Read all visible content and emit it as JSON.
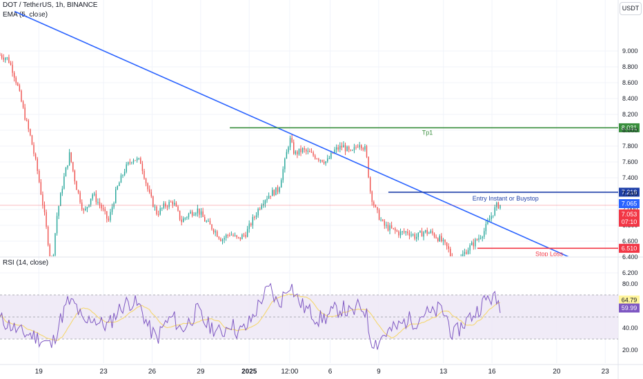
{
  "header": {
    "title": "DOT / TetherUS, 1h, BINANCE",
    "indicator": "EMA (5, close)",
    "currency": "USDT"
  },
  "chart_data": [
    {
      "type": "candlestick",
      "symbol": "DOT / TetherUS",
      "interval": "1h",
      "exchange": "BINANCE",
      "y_ticks": [
        "9.000",
        "8.800",
        "8.600",
        "8.400",
        "8.200",
        "8.000",
        "7.800",
        "7.600",
        "7.400",
        "7.200",
        "7.000",
        "6.800",
        "6.600",
        "6.400",
        "6.200"
      ],
      "ylim": [
        6.18,
        9.2
      ],
      "x_ticks": [
        {
          "day": 0.7,
          "label": "19",
          "bold": false
        },
        {
          "day": 4.7,
          "label": "23",
          "bold": false
        },
        {
          "day": 7.7,
          "label": "26",
          "bold": false
        },
        {
          "day": 10.7,
          "label": "29",
          "bold": false
        },
        {
          "day": 13.7,
          "label": "2025",
          "bold": true
        },
        {
          "day": 16.2,
          "label": "12:00",
          "bold": false
        },
        {
          "day": 18.7,
          "label": "6",
          "bold": false
        },
        {
          "day": 21.7,
          "label": "9",
          "bold": false
        },
        {
          "day": 25.7,
          "label": "13",
          "bold": false
        },
        {
          "day": 28.7,
          "label": "16",
          "bold": false
        },
        {
          "day": 32.7,
          "label": "20",
          "bold": false
        },
        {
          "day": 35.7,
          "label": "23",
          "bold": false
        }
      ],
      "xlim": [
        -1.7,
        36.5
      ],
      "price_path": [
        [
          -1.7,
          8.95
        ],
        [
          -1.2,
          8.9
        ],
        [
          -0.9,
          8.75
        ],
        [
          -0.6,
          8.55
        ],
        [
          -0.2,
          8.2
        ],
        [
          0.2,
          7.9
        ],
        [
          0.6,
          7.5
        ],
        [
          1.0,
          7.0
        ],
        [
          1.3,
          6.55
        ],
        [
          1.5,
          6.25
        ],
        [
          1.8,
          6.9
        ],
        [
          2.2,
          7.35
        ],
        [
          2.6,
          7.7
        ],
        [
          3.0,
          7.3
        ],
        [
          3.5,
          6.95
        ],
        [
          4.0,
          7.2
        ],
        [
          4.5,
          7.05
        ],
        [
          5.0,
          6.85
        ],
        [
          5.5,
          7.25
        ],
        [
          6.0,
          7.5
        ],
        [
          6.5,
          7.65
        ],
        [
          7.0,
          7.6
        ],
        [
          7.5,
          7.2
        ],
        [
          8.0,
          6.95
        ],
        [
          8.5,
          7.05
        ],
        [
          9.0,
          7.1
        ],
        [
          9.5,
          6.85
        ],
        [
          10.0,
          6.95
        ],
        [
          10.5,
          7.0
        ],
        [
          11.0,
          6.85
        ],
        [
          11.5,
          6.75
        ],
        [
          12.0,
          6.62
        ],
        [
          12.5,
          6.7
        ],
        [
          13.0,
          6.62
        ],
        [
          13.5,
          6.7
        ],
        [
          14.0,
          6.9
        ],
        [
          14.5,
          7.1
        ],
        [
          15.0,
          7.2
        ],
        [
          15.5,
          7.25
        ],
        [
          15.9,
          7.6
        ],
        [
          16.2,
          7.9
        ],
        [
          16.5,
          7.7
        ],
        [
          17.0,
          7.75
        ],
        [
          17.5,
          7.7
        ],
        [
          18.0,
          7.65
        ],
        [
          18.5,
          7.6
        ],
        [
          19.0,
          7.75
        ],
        [
          19.5,
          7.8
        ],
        [
          20.0,
          7.7
        ],
        [
          20.5,
          7.85
        ],
        [
          20.9,
          7.75
        ],
        [
          21.2,
          7.2
        ],
        [
          21.5,
          7.0
        ],
        [
          22.0,
          6.8
        ],
        [
          22.5,
          6.75
        ],
        [
          23.0,
          6.7
        ],
        [
          23.5,
          6.72
        ],
        [
          24.0,
          6.65
        ],
        [
          24.5,
          6.72
        ],
        [
          25.0,
          6.7
        ],
        [
          25.5,
          6.62
        ],
        [
          26.0,
          6.5
        ],
        [
          26.4,
          6.25
        ],
        [
          26.8,
          6.4
        ],
        [
          27.2,
          6.5
        ],
        [
          27.7,
          6.6
        ],
        [
          28.2,
          6.72
        ],
        [
          28.6,
          6.9
        ],
        [
          29.0,
          7.05
        ],
        [
          29.3,
          7.06
        ]
      ],
      "trendline": {
        "from": [
          -0.8,
          9.5
        ],
        "to": [
          35.9,
          6.18
        ],
        "color": "#2962ff"
      },
      "levels": [
        {
          "name": "Tp1",
          "price": 8.031,
          "tag": "8.031",
          "color": "#388e3c",
          "from_day": 12.5
        },
        {
          "name": "Entry Instant or Buystop",
          "price": 7.218,
          "tag": "7.218",
          "color": "#1e3fa8",
          "from_day": 22.3
        },
        {
          "name": "Stop Loss",
          "price": 6.51,
          "tag": "6.510",
          "color": "#f23645",
          "from_day": 27.8
        }
      ],
      "current_price": {
        "price": 7.053,
        "label": "7.053",
        "countdown": "07:10",
        "color": "#f23645"
      },
      "ema_value": {
        "price": 7.065,
        "label": "7.065",
        "color": "#2962ff"
      }
    },
    {
      "type": "line",
      "name": "RSI (14, close)",
      "y_ticks": [
        "80.00",
        "40.00",
        "20.00"
      ],
      "ylim": [
        17,
        86
      ],
      "band": {
        "upper": 70,
        "middle": 50,
        "lower": 30
      },
      "values_path": [
        [
          -1.7,
          48
        ],
        [
          -1.0,
          42
        ],
        [
          -0.5,
          36
        ],
        [
          0.2,
          34
        ],
        [
          0.8,
          30
        ],
        [
          1.5,
          24
        ],
        [
          2.0,
          46
        ],
        [
          2.5,
          64
        ],
        [
          3.0,
          60
        ],
        [
          3.5,
          42
        ],
        [
          4.0,
          50
        ],
        [
          4.5,
          44
        ],
        [
          5.0,
          42
        ],
        [
          5.5,
          54
        ],
        [
          6.0,
          62
        ],
        [
          6.5,
          64
        ],
        [
          7.0,
          58
        ],
        [
          7.5,
          40
        ],
        [
          8.0,
          30
        ],
        [
          8.5,
          44
        ],
        [
          9.0,
          50
        ],
        [
          9.5,
          38
        ],
        [
          10.0,
          46
        ],
        [
          10.5,
          56
        ],
        [
          11.0,
          44
        ],
        [
          11.5,
          40
        ],
        [
          12.0,
          34
        ],
        [
          12.5,
          46
        ],
        [
          13.0,
          36
        ],
        [
          13.5,
          40
        ],
        [
          14.0,
          52
        ],
        [
          14.5,
          68
        ],
        [
          15.0,
          76
        ],
        [
          15.5,
          60
        ],
        [
          15.9,
          72
        ],
        [
          16.2,
          82
        ],
        [
          16.6,
          68
        ],
        [
          17.0,
          60
        ],
        [
          17.5,
          54
        ],
        [
          18.0,
          48
        ],
        [
          18.5,
          50
        ],
        [
          19.0,
          56
        ],
        [
          19.5,
          58
        ],
        [
          20.0,
          52
        ],
        [
          20.5,
          60
        ],
        [
          20.9,
          56
        ],
        [
          21.2,
          30
        ],
        [
          21.6,
          26
        ],
        [
          22.0,
          34
        ],
        [
          22.5,
          38
        ],
        [
          23.0,
          42
        ],
        [
          23.5,
          48
        ],
        [
          24.0,
          46
        ],
        [
          24.5,
          54
        ],
        [
          25.0,
          52
        ],
        [
          25.5,
          58
        ],
        [
          25.9,
          50
        ],
        [
          26.3,
          32
        ],
        [
          26.7,
          40
        ],
        [
          27.2,
          48
        ],
        [
          27.7,
          54
        ],
        [
          28.1,
          62
        ],
        [
          28.5,
          68
        ],
        [
          28.9,
          66
        ],
        [
          29.3,
          60
        ]
      ],
      "value_tags": [
        {
          "value": 64.79,
          "label": "64.79",
          "color": "#fff59d",
          "text_color": "#131722"
        },
        {
          "value": 59.99,
          "label": "59.99",
          "color": "#7e57c2",
          "text_color": "#ffffff"
        }
      ]
    }
  ],
  "colors": {
    "up": "#26a69a",
    "down": "#ef5350",
    "rsi_line": "#7e57c2",
    "rsi_ma": "#f5d76e",
    "rsi_band_fill": "#ede7f6",
    "grid": "#f0f3fa",
    "axis_border": "#e0e3eb"
  }
}
